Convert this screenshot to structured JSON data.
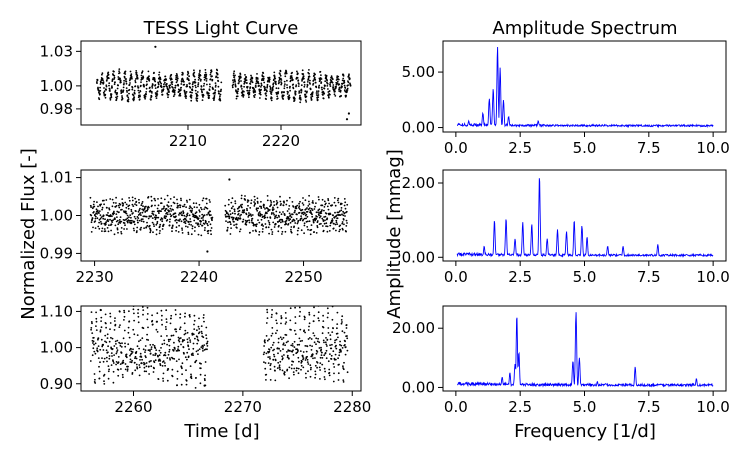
{
  "figure": {
    "left_column_title": "TESS Light Curve",
    "right_column_title": "Amplitude Spectrum",
    "left_ylabel": "Normalized Flux [-]",
    "left_xlabel": "Time [d]",
    "right_ylabel": "Amplitude [mmag]",
    "right_xlabel": "Frequency [1/d]"
  },
  "chart_data": [
    {
      "type": "scatter",
      "panel": "light-curve-1",
      "title": "TESS Light Curve",
      "xlabel": "",
      "ylabel": "",
      "xlim": [
        2198.5,
        2228.6
      ],
      "ylim": [
        0.966,
        1.039
      ],
      "xticks": [
        2210,
        2220
      ],
      "xtick_labels": [
        "2210",
        "2220"
      ],
      "yticks": [
        0.98,
        1.0,
        1.03
      ],
      "ytick_labels": [
        "0.98",
        "1.00",
        "1.03"
      ],
      "color": "#000000",
      "segments": [
        [
          2200.2,
          2213.6
        ],
        [
          2214.8,
          2227.5
        ]
      ],
      "baseline": 1.0,
      "scatter_amplitude": 0.011,
      "notable_points": {
        "x": [
          2206.5,
          2227.1,
          2227.3
        ],
        "y": [
          1.034,
          0.971,
          0.976
        ]
      }
    },
    {
      "type": "scatter",
      "panel": "light-curve-2",
      "title": "",
      "xlabel": "",
      "ylabel": "",
      "xlim": [
        2228.7,
        2255.5
      ],
      "ylim": [
        0.988,
        1.012
      ],
      "xticks": [
        2230,
        2240,
        2250
      ],
      "xtick_labels": [
        "2230",
        "2240",
        "2250"
      ],
      "yticks": [
        0.99,
        1.0,
        1.01
      ],
      "ytick_labels": [
        "0.99",
        "1.00",
        "1.01"
      ],
      "color": "#000000",
      "segments": [
        [
          2229.6,
          2241.3
        ],
        [
          2242.5,
          2254.2
        ]
      ],
      "baseline": 1.0,
      "scatter_amplitude": 0.0045,
      "notable_points": {
        "x": [
          2242.9,
          2240.8
        ],
        "y": [
          1.0095,
          0.9905
        ]
      }
    },
    {
      "type": "scatter",
      "panel": "light-curve-3",
      "title": "",
      "xlabel": "Time [d]",
      "ylabel": "",
      "xlim": [
        2255.2,
        2280.8
      ],
      "ylim": [
        0.88,
        1.115
      ],
      "xticks": [
        2260,
        2270,
        2280
      ],
      "xtick_labels": [
        "2260",
        "2270",
        "2280"
      ],
      "yticks": [
        0.9,
        1.0,
        1.1
      ],
      "ytick_labels": [
        "0.90",
        "1.00",
        "1.10"
      ],
      "color": "#000000",
      "segments": [
        [
          2256.1,
          2266.8
        ],
        [
          2271.9,
          2279.6
        ]
      ],
      "baseline": 1.0,
      "scatter_amplitude": 0.11,
      "notable_points": {
        "x": [
          2257.0,
          2266.5
        ],
        "y": [
          1.104,
          0.895
        ]
      }
    },
    {
      "type": "line",
      "panel": "spectrum-1",
      "title": "Amplitude Spectrum",
      "xlabel": "",
      "ylabel": "",
      "xlim": [
        -0.5,
        10.5
      ],
      "ylim": [
        -0.4,
        7.8
      ],
      "xticks": [
        0,
        2.5,
        5,
        7.5,
        10
      ],
      "xtick_labels": [
        "0.0",
        "2.5",
        "5.0",
        "7.5",
        "10.0"
      ],
      "yticks": [
        0,
        5
      ],
      "ytick_labels": [
        "0.00",
        "5.00"
      ],
      "color": "#0000ff",
      "x_range": [
        0.05,
        10.0
      ],
      "noise_level": 0.25,
      "peaks": [
        {
          "f": 0.5,
          "a": 0.6
        },
        {
          "f": 1.05,
          "a": 1.3
        },
        {
          "f": 1.3,
          "a": 2.6
        },
        {
          "f": 1.45,
          "a": 3.5
        },
        {
          "f": 1.62,
          "a": 7.3
        },
        {
          "f": 1.72,
          "a": 5.4
        },
        {
          "f": 1.85,
          "a": 2.5
        },
        {
          "f": 2.05,
          "a": 1.0
        },
        {
          "f": 3.2,
          "a": 0.6
        }
      ]
    },
    {
      "type": "line",
      "panel": "spectrum-2",
      "title": "",
      "xlabel": "",
      "ylabel": "Amplitude [mmag]",
      "xlim": [
        -0.5,
        10.5
      ],
      "ylim": [
        -0.1,
        2.35
      ],
      "xticks": [
        0,
        2.5,
        5,
        7.5,
        10
      ],
      "xtick_labels": [
        "0.0",
        "2.5",
        "5.0",
        "7.5",
        "10.0"
      ],
      "yticks": [
        0,
        2
      ],
      "ytick_labels": [
        "0.00",
        "2.00"
      ],
      "color": "#0000ff",
      "x_range": [
        0.05,
        10.0
      ],
      "noise_level": 0.08,
      "peaks": [
        {
          "f": 1.1,
          "a": 0.3
        },
        {
          "f": 1.5,
          "a": 1.0
        },
        {
          "f": 1.95,
          "a": 1.05
        },
        {
          "f": 2.3,
          "a": 0.5
        },
        {
          "f": 2.6,
          "a": 0.95
        },
        {
          "f": 2.95,
          "a": 0.9
        },
        {
          "f": 3.25,
          "a": 2.2
        },
        {
          "f": 3.55,
          "a": 0.5
        },
        {
          "f": 3.95,
          "a": 0.75
        },
        {
          "f": 4.3,
          "a": 0.7
        },
        {
          "f": 4.6,
          "a": 1.0
        },
        {
          "f": 4.9,
          "a": 0.85
        },
        {
          "f": 5.1,
          "a": 0.55
        },
        {
          "f": 5.9,
          "a": 0.3
        },
        {
          "f": 6.5,
          "a": 0.3
        },
        {
          "f": 7.85,
          "a": 0.35
        }
      ]
    },
    {
      "type": "line",
      "panel": "spectrum-3",
      "title": "",
      "xlabel": "Frequency [1/d]",
      "ylabel": "",
      "xlim": [
        -0.5,
        10.5
      ],
      "ylim": [
        -1.2,
        27.5
      ],
      "xticks": [
        0,
        2.5,
        5,
        7.5,
        10
      ],
      "xtick_labels": [
        "0.0",
        "2.5",
        "5.0",
        "7.5",
        "10.0"
      ],
      "yticks": [
        0,
        20
      ],
      "ytick_labels": [
        "0.00",
        "20.00"
      ],
      "color": "#0000ff",
      "x_range": [
        0.05,
        10.0
      ],
      "noise_level": 1.2,
      "peaks": [
        {
          "f": 1.8,
          "a": 3.5
        },
        {
          "f": 2.1,
          "a": 5.0
        },
        {
          "f": 2.3,
          "a": 8.0
        },
        {
          "f": 2.37,
          "a": 24.5
        },
        {
          "f": 2.45,
          "a": 12.0
        },
        {
          "f": 4.55,
          "a": 9.0
        },
        {
          "f": 4.67,
          "a": 25.5
        },
        {
          "f": 4.8,
          "a": 10.0
        },
        {
          "f": 5.5,
          "a": 2.0
        },
        {
          "f": 6.97,
          "a": 7.0
        },
        {
          "f": 9.35,
          "a": 3.0
        }
      ]
    }
  ]
}
